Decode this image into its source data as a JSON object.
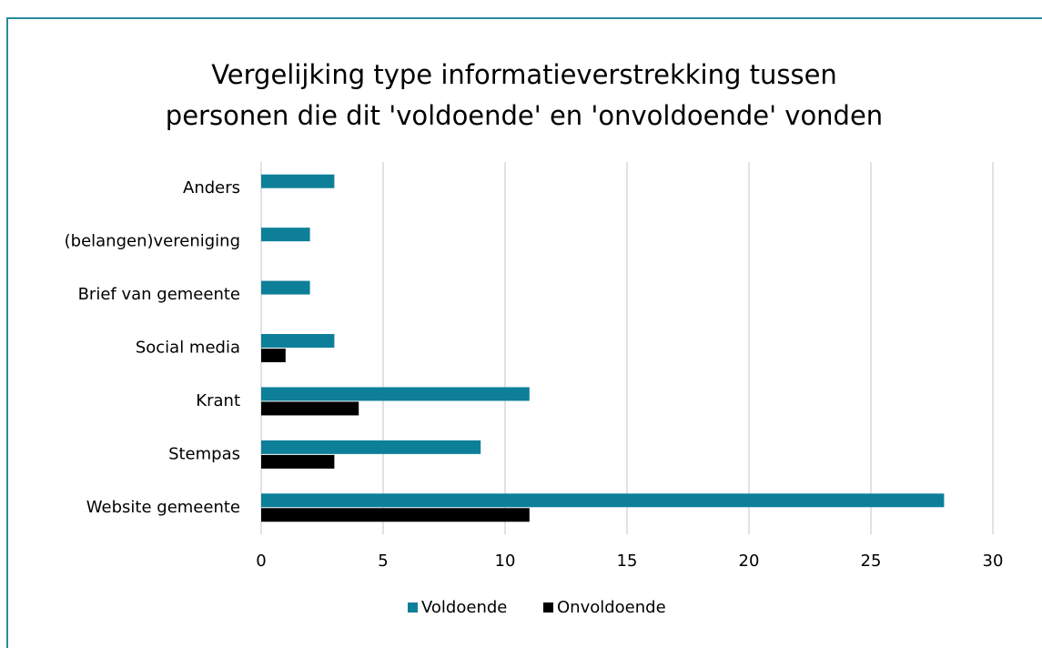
{
  "chart_data": {
    "type": "hbar",
    "title": [
      "Vergelijking type informatieverstrekking tussen",
      "personen die dit 'voldoende' en 'onvoldoende' vonden"
    ],
    "categories": [
      "Website gemeente",
      "Stempas",
      "Krant",
      "Social media",
      "Brief van gemeente",
      "(belangen)vereniging",
      "Anders"
    ],
    "series": [
      {
        "name": "Voldoende",
        "color": "#0e7f99",
        "values": [
          28,
          9,
          11,
          3,
          2,
          2,
          3
        ]
      },
      {
        "name": "Onvoldoende",
        "color": "#000000",
        "values": [
          11,
          3,
          4,
          1,
          0,
          0,
          0
        ]
      }
    ],
    "xlim": [
      0,
      30
    ],
    "xticks": [
      0,
      5,
      10,
      15,
      20,
      25,
      30
    ],
    "grid": true,
    "legend": "bottom"
  }
}
